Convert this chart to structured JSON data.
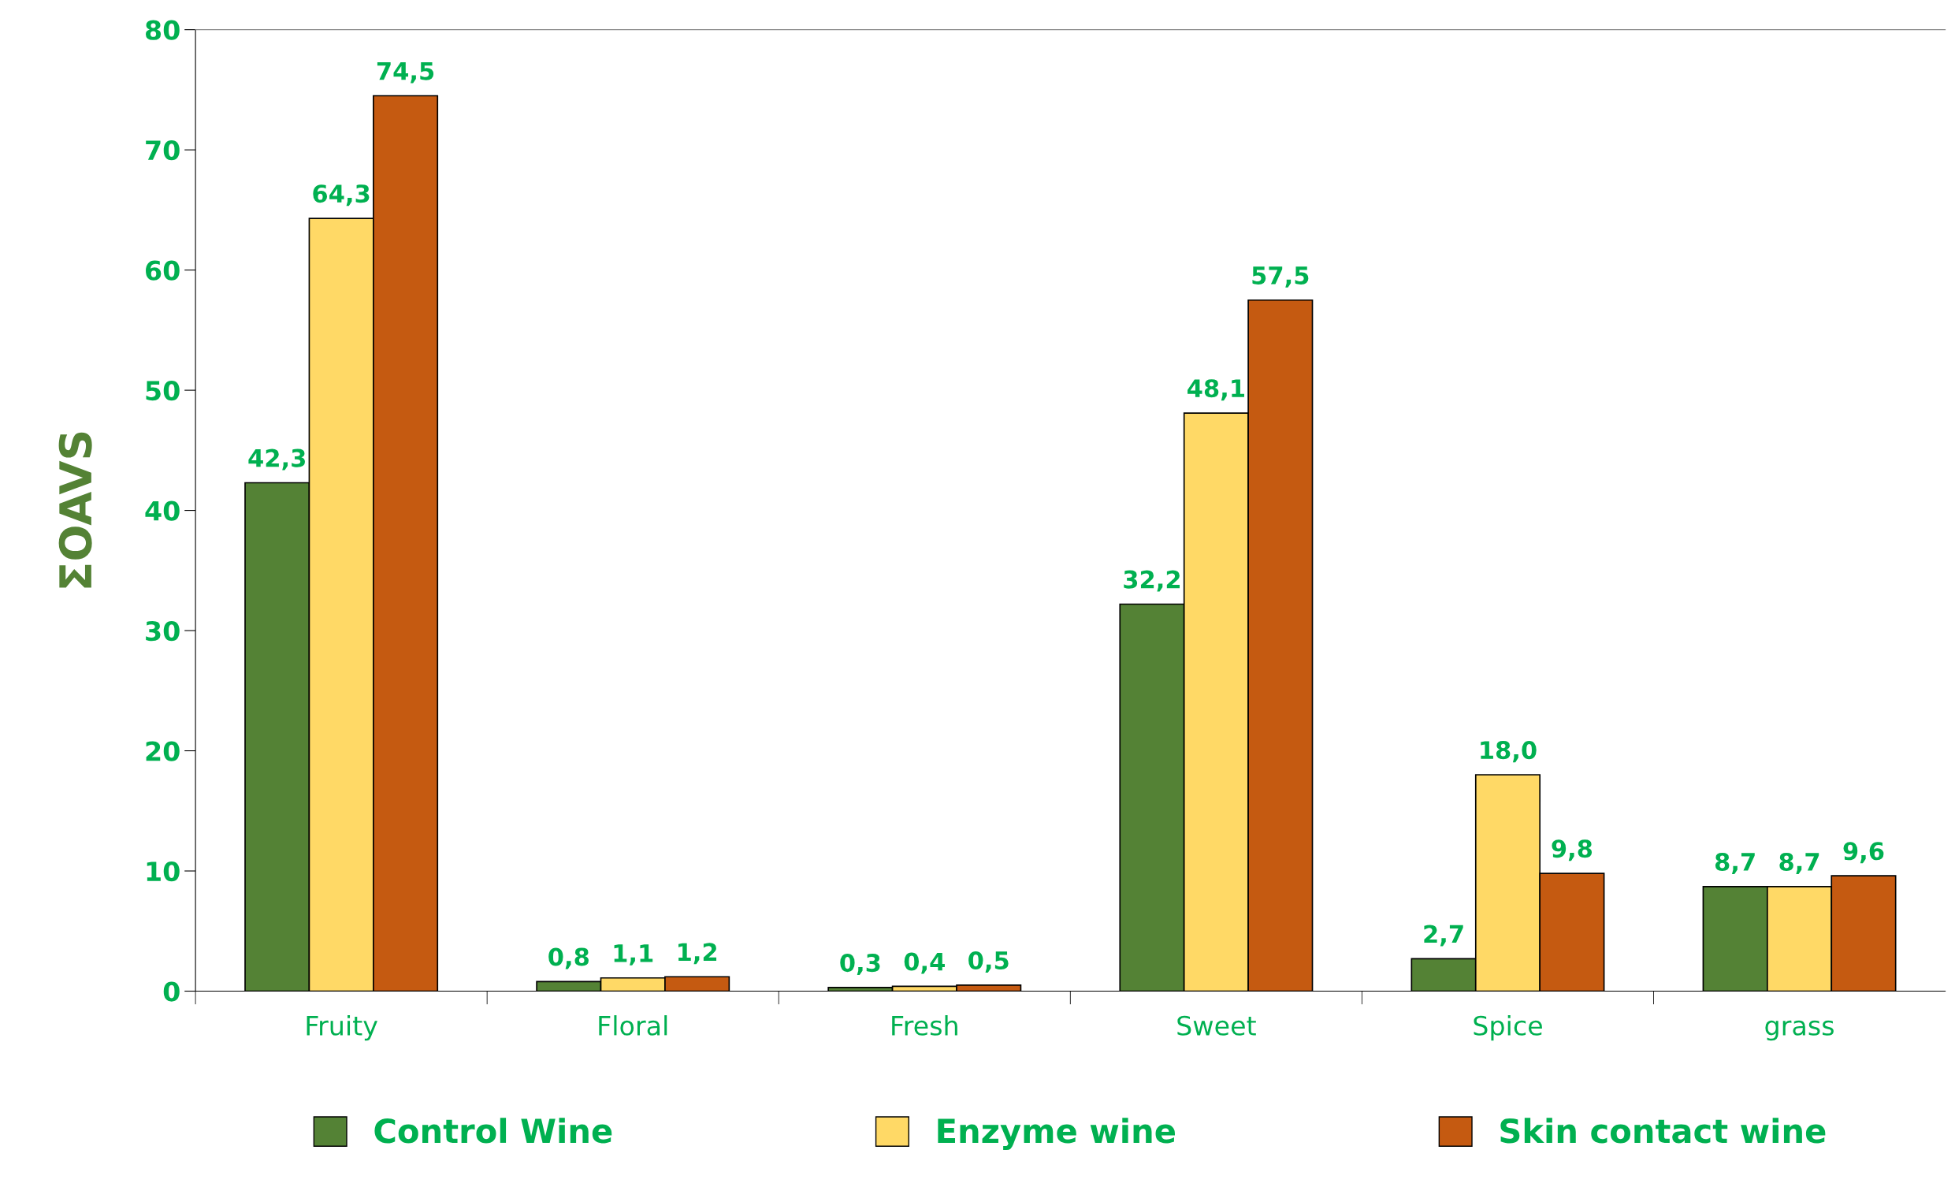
{
  "chart_data": {
    "type": "bar",
    "ylabel": "ΣOAVS",
    "categories": [
      "Fruity",
      "Floral",
      "Fresh",
      "Sweet",
      "Spice",
      "grass"
    ],
    "series": [
      {
        "name": "Control Wine",
        "color": "#548235",
        "values": [
          42.3,
          0.8,
          0.3,
          32.2,
          2.7,
          8.7
        ],
        "value_labels": [
          "42,3",
          "0,8",
          "0,3",
          "32,2",
          "2,7",
          "8,7"
        ]
      },
      {
        "name": "Enzyme wine",
        "color": "#ffd966",
        "values": [
          64.3,
          1.1,
          0.4,
          48.1,
          18.0,
          8.7
        ],
        "value_labels": [
          "64,3",
          "1,1",
          "0,4",
          "48,1",
          "18,0",
          "8,7"
        ]
      },
      {
        "name": "Skin contact wine",
        "color": "#c55a11",
        "values": [
          74.5,
          1.2,
          0.5,
          57.5,
          9.8,
          9.6
        ],
        "value_labels": [
          "74,5",
          "1,2",
          "0,5",
          "57,5",
          "9,8",
          "9,6"
        ]
      }
    ],
    "ylim": [
      0,
      80
    ],
    "yticks": [
      0,
      10,
      20,
      30,
      40,
      50,
      60,
      70,
      80
    ],
    "grid": false,
    "legend": "bottom"
  }
}
